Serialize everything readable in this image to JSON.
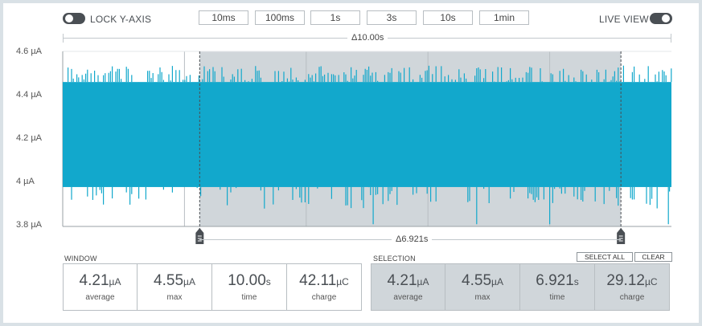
{
  "toolbar": {
    "lock_label": "LOCK Y-AXIS",
    "live_label": "LIVE VIEW",
    "windows": [
      "10ms",
      "100ms",
      "1s",
      "3s",
      "10s",
      "1min"
    ]
  },
  "chart": {
    "window_delta": "Δ10.00s",
    "selection_delta": "Δ6.921s",
    "y_ticks": [
      "4.6 µA",
      "4.4 µA",
      "4.2 µA",
      "4 µA",
      "3.8 µA"
    ],
    "ylim": [
      3.8,
      4.6
    ],
    "selection_range": [
      0.225,
      0.917
    ],
    "series_color": "#12a8cc"
  },
  "chart_data": {
    "type": "line",
    "x_range_s": [
      0,
      10
    ],
    "ylim": [
      3.8,
      4.6
    ],
    "y_ticks": [
      "4.6 µA",
      "4.4 µA",
      "4.2 µA",
      "4 µA",
      "3.8 µA"
    ],
    "series": [
      {
        "values_band": {
          "typical_min": 3.98,
          "typical_max": 4.46,
          "peak_max": 4.55,
          "trough_min": 3.81
        }
      }
    ]
  },
  "window": {
    "label": "WINDOW",
    "stats": [
      {
        "value": "4.21",
        "unit": "µA",
        "caption": "average"
      },
      {
        "value": "4.55",
        "unit": "µA",
        "caption": "max"
      },
      {
        "value": "10.00",
        "unit": "s",
        "caption": "time"
      },
      {
        "value": "42.11",
        "unit": "µC",
        "caption": "charge"
      }
    ]
  },
  "selection": {
    "label": "SELECTION",
    "select_all": "SELECT ALL",
    "clear": "CLEAR",
    "stats": [
      {
        "value": "4.21",
        "unit": "µA",
        "caption": "average"
      },
      {
        "value": "4.55",
        "unit": "µA",
        "caption": "max"
      },
      {
        "value": "6.921",
        "unit": "s",
        "caption": "time"
      },
      {
        "value": "29.12",
        "unit": "µC",
        "caption": "charge"
      }
    ]
  }
}
